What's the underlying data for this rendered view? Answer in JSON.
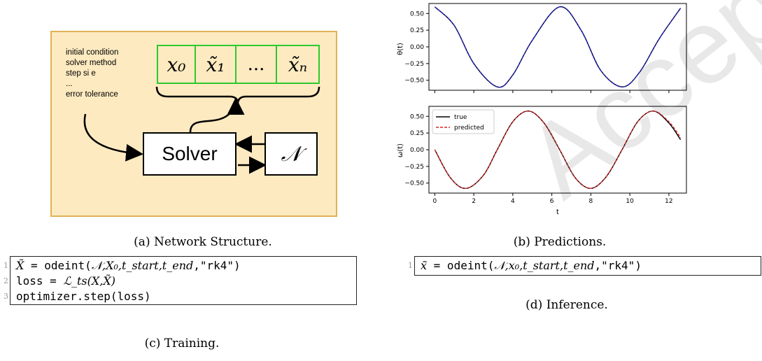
{
  "diagram": {
    "param_lines": [
      "initial condition",
      "solver method",
      "step si e",
      "...",
      "error tolerance"
    ],
    "solver_label": "Solver",
    "net_symbol": "𝒩",
    "state_cells": [
      "x₀",
      "x̃₁",
      "...",
      "x̃ₙ"
    ],
    "colors": {
      "panel_fill": "#fdeac0",
      "panel_border": "#e0b255",
      "cell_border": "#2ec92e"
    }
  },
  "charts": {
    "theta": {
      "ylabel": "θ(t)",
      "yticks": [
        "0.50",
        "0.25",
        "0.00",
        "−0.25",
        "−0.50"
      ]
    },
    "omega": {
      "ylabel": "ω(t)",
      "xlabel": "t",
      "yticks": [
        "0.50",
        "0.25",
        "0.00",
        "−0.25",
        "−0.50"
      ],
      "xticks": [
        "0",
        "2",
        "4",
        "6",
        "8",
        "10",
        "12"
      ],
      "legend": [
        "true",
        "predicted"
      ]
    }
  },
  "chart_data": [
    {
      "type": "line",
      "title": "",
      "xlabel": "",
      "ylabel": "θ(t)",
      "xlim": [
        -0.3,
        12.9
      ],
      "ylim": [
        -0.65,
        0.65
      ],
      "colors": {
        "true": "#000000",
        "predicted": "#1f1fd6"
      },
      "series": [
        {
          "x": [
            0,
            1,
            2,
            3.2,
            4,
            5,
            6.4,
            7.5,
            8.5,
            9.6,
            10.5,
            11.5,
            12.6
          ],
          "y": [
            0.6,
            0.32,
            -0.25,
            -0.6,
            -0.42,
            0.1,
            0.6,
            0.25,
            -0.35,
            -0.6,
            -0.38,
            0.12,
            0.58
          ]
        }
      ]
    },
    {
      "type": "line",
      "title": "",
      "xlabel": "t",
      "ylabel": "ω(t)",
      "xlim": [
        -0.3,
        12.9
      ],
      "ylim": [
        -0.65,
        0.65
      ],
      "legend_position": "top-left",
      "colors": {
        "true": "#000000",
        "predicted": "#d62728"
      },
      "series": [
        {
          "name": "true",
          "x": [
            0,
            0.8,
            1.6,
            2.5,
            3.2,
            4,
            4.8,
            5.6,
            6.4,
            7.2,
            8,
            8.8,
            9.6,
            10.4,
            11.2,
            12,
            12.6
          ],
          "y": [
            0.0,
            -0.42,
            -0.58,
            -0.38,
            0.0,
            0.42,
            0.58,
            0.4,
            0.0,
            -0.42,
            -0.58,
            -0.4,
            0.0,
            0.42,
            0.58,
            0.4,
            0.15
          ]
        },
        {
          "name": "predicted",
          "x": [
            0,
            0.8,
            1.6,
            2.5,
            3.2,
            4,
            4.8,
            5.6,
            6.4,
            7.2,
            8,
            8.8,
            9.6,
            10.4,
            11.2,
            12,
            12.6
          ],
          "y": [
            0.0,
            -0.42,
            -0.58,
            -0.38,
            0.0,
            0.42,
            0.58,
            0.4,
            0.0,
            -0.42,
            -0.58,
            -0.4,
            0.0,
            0.42,
            0.58,
            0.42,
            0.18
          ]
        }
      ]
    }
  ],
  "captions": {
    "a": "(a) Network Structure.",
    "b": "(b) Predictions.",
    "c": "(c) Training.",
    "d": "(d) Inference."
  },
  "code_training": {
    "line_numbers": [
      "1",
      "2",
      "3"
    ],
    "line1_lhs": "X̃",
    "line1_eq": " = odeint(",
    "line1_args": "𝒩,X₀,t_start,t_end",
    "line1_tail": ",\"rk4\")",
    "line2_start": "loss = ",
    "line2_expr": "ℒ_ts(X,X̃)",
    "line3": "optimizer.step(loss)"
  },
  "code_inference": {
    "line_number": "1",
    "lhs": "x̃",
    "eq": " = odeint(",
    "args": "𝒩,x₀,t_start,t_end",
    "tail": ",\"rk4\")"
  },
  "watermark_text": "Accepted"
}
